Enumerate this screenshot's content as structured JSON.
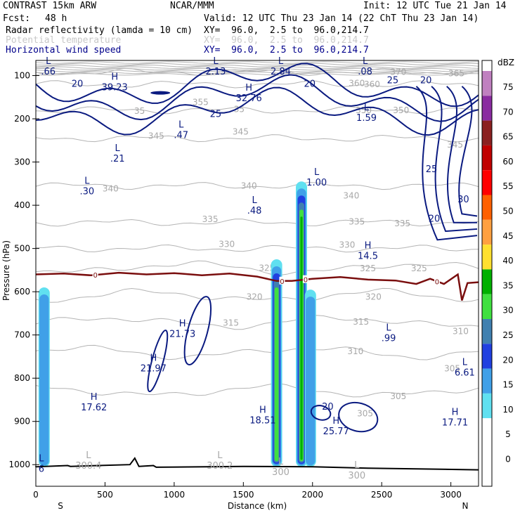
{
  "header": {
    "model": "CONTRAST 15km ARW",
    "org": "NCAR/MMM",
    "init": "Init: 12 UTC Tue 21 Jan 14",
    "fcst_label": "Fcst:",
    "fcst_value": "48 h",
    "valid": "Valid: 12 UTC Thu 23 Jan 14 (22 ChT Thu 23 Jan 14)",
    "fields": [
      {
        "name": "Radar reflectivity (lamda = 10 cm)",
        "xy": "XY=  96.0,  2.5 to  96.0,214.7",
        "color": "#000000"
      },
      {
        "name": "Potential temperature",
        "xy": "XY=  96.0,  2.5 to  96.0,214.7",
        "color": "#c8c8c8"
      },
      {
        "name": "Horizontal wind speed",
        "xy": "XY=  96.0,  2.5 to  96.0,214.7",
        "color": "#00008b"
      }
    ]
  },
  "chart_data": {
    "type": "cross-section contour",
    "xlabel": "Distance (km)",
    "ylabel": "Pressure (hPa)",
    "xlim": [
      0,
      3200
    ],
    "ylim": [
      1050,
      65
    ],
    "x_ticks": [
      0,
      500,
      1000,
      1500,
      2000,
      2500,
      3000
    ],
    "y_ticks": [
      100,
      200,
      300,
      400,
      500,
      600,
      700,
      800,
      900,
      1000
    ],
    "x_end_labels": {
      "left": "S",
      "right": "N"
    },
    "colorbar": {
      "title": "dBZ",
      "levels": [
        75,
        70,
        65,
        60,
        55,
        50,
        45,
        40,
        35,
        30,
        25,
        20,
        15,
        10,
        5,
        0
      ],
      "colors": [
        "#ffffff",
        "#c080c0",
        "#8a2ba0",
        "#8b2020",
        "#c00000",
        "#ff0000",
        "#ff6000",
        "#ffa040",
        "#ffe030",
        "#00b000",
        "#40e040",
        "#4080b0",
        "#2040e0",
        "#40a0e8",
        "#60e0f0",
        "#ffffff"
      ]
    },
    "radar_columns": [
      {
        "x_km": 60,
        "top_hpa": 590,
        "bottom_hpa": 1005,
        "max_dbz": 10
      },
      {
        "x_km": 1740,
        "top_hpa": 525,
        "bottom_hpa": 1005,
        "max_dbz": 25
      },
      {
        "x_km": 1920,
        "top_hpa": 345,
        "bottom_hpa": 1005,
        "max_dbz": 30
      },
      {
        "x_km": 1985,
        "top_hpa": 595,
        "bottom_hpa": 1005,
        "max_dbz": 10
      }
    ],
    "theta_contours": [
      {
        "level": 370,
        "pressure_hpa": 92
      },
      {
        "level": 360,
        "pressure_hpa": 120
      },
      {
        "level": 350,
        "pressure_hpa": 180
      },
      {
        "level": 345,
        "pressure_hpa": 245
      },
      {
        "level": 340,
        "pressure_hpa": 355
      },
      {
        "level": 335,
        "pressure_hpa": 440
      },
      {
        "level": 330,
        "pressure_hpa": 500
      },
      {
        "level": 325,
        "pressure_hpa": 545
      },
      {
        "level": 320,
        "pressure_hpa": 610
      },
      {
        "level": 315,
        "pressure_hpa": 670
      },
      {
        "level": 310,
        "pressure_hpa": 740
      },
      {
        "level": 305,
        "pressure_hpa": 830
      }
    ],
    "theta_labels": [
      {
        "text": "370",
        "x_km": 2620,
        "p": 92
      },
      {
        "text": "365",
        "x_km": 3040,
        "p": 95
      },
      {
        "text": "360",
        "x_km": 2320,
        "p": 118
      },
      {
        "text": "360",
        "x_km": 2430,
        "p": 120
      },
      {
        "text": "355",
        "x_km": 1190,
        "p": 162
      },
      {
        "text": "350",
        "x_km": 2370,
        "p": 180
      },
      {
        "text": "350",
        "x_km": 2640,
        "p": 180
      },
      {
        "text": "35",
        "x_km": 1470,
        "p": 178
      },
      {
        "text": "35",
        "x_km": 750,
        "p": 182
      },
      {
        "text": "345",
        "x_km": 870,
        "p": 240
      },
      {
        "text": "345",
        "x_km": 1480,
        "p": 230
      },
      {
        "text": "345",
        "x_km": 3030,
        "p": 260
      },
      {
        "text": "340",
        "x_km": 540,
        "p": 362
      },
      {
        "text": "340",
        "x_km": 1540,
        "p": 355
      },
      {
        "text": "340",
        "x_km": 2280,
        "p": 378
      },
      {
        "text": "335",
        "x_km": 1260,
        "p": 432
      },
      {
        "text": "335",
        "x_km": 2320,
        "p": 438
      },
      {
        "text": "335",
        "x_km": 2650,
        "p": 442
      },
      {
        "text": "330",
        "x_km": 1380,
        "p": 490
      },
      {
        "text": "330",
        "x_km": 2250,
        "p": 492
      },
      {
        "text": "325",
        "x_km": 1670,
        "p": 545
      },
      {
        "text": "325",
        "x_km": 2400,
        "p": 546
      },
      {
        "text": "325",
        "x_km": 2770,
        "p": 546
      },
      {
        "text": "320",
        "x_km": 1580,
        "p": 612
      },
      {
        "text": "320",
        "x_km": 2440,
        "p": 612
      },
      {
        "text": "315",
        "x_km": 1410,
        "p": 672
      },
      {
        "text": "315",
        "x_km": 2350,
        "p": 670
      },
      {
        "text": "310",
        "x_km": 2310,
        "p": 738
      },
      {
        "text": "310",
        "x_km": 3070,
        "p": 692
      },
      {
        "text": "305",
        "x_km": 3010,
        "p": 778
      },
      {
        "text": "305",
        "x_km": 2620,
        "p": 842
      },
      {
        "text": "305",
        "x_km": 2380,
        "p": 882
      }
    ],
    "wind_labels": [
      {
        "text": "20",
        "x_km": 300,
        "p": 118
      },
      {
        "text": "20",
        "x_km": 1980,
        "p": 118
      },
      {
        "text": "25",
        "x_km": 2580,
        "p": 110
      },
      {
        "text": "20",
        "x_km": 2820,
        "p": 110
      },
      {
        "text": "25",
        "x_km": 1300,
        "p": 188
      },
      {
        "text": "25",
        "x_km": 2860,
        "p": 315
      },
      {
        "text": "30",
        "x_km": 3090,
        "p": 385
      },
      {
        "text": "20",
        "x_km": 2880,
        "p": 430
      },
      {
        "text": "20",
        "x_km": 2110,
        "p": 865
      }
    ],
    "extrema": [
      {
        "kind": "L",
        "value": ".66",
        "x_km": 90,
        "p": 73
      },
      {
        "kind": "L",
        "value": "2.13",
        "x_km": 1300,
        "p": 73
      },
      {
        "kind": "L",
        "value": "2.84",
        "x_km": 1770,
        "p": 73
      },
      {
        "kind": "L",
        "value": ".08",
        "x_km": 2380,
        "p": 73
      },
      {
        "kind": "H",
        "value": "39.23",
        "x_km": 570,
        "p": 110
      },
      {
        "kind": "H",
        "value": "32.76",
        "x_km": 1540,
        "p": 135
      },
      {
        "kind": "L",
        "value": "1.59",
        "x_km": 2390,
        "p": 180
      },
      {
        "kind": "L",
        "value": ".47",
        "x_km": 1050,
        "p": 220
      },
      {
        "kind": "L",
        "value": ".21",
        "x_km": 590,
        "p": 275
      },
      {
        "kind": "L",
        "value": ".30",
        "x_km": 370,
        "p": 350
      },
      {
        "kind": "L",
        "value": "1.00",
        "x_km": 2030,
        "p": 330
      },
      {
        "kind": "L",
        "value": ".48",
        "x_km": 1580,
        "p": 395
      },
      {
        "kind": "H",
        "value": "14.5",
        "x_km": 2400,
        "p": 500
      },
      {
        "kind": "H",
        "value": "21.73",
        "x_km": 1060,
        "p": 680
      },
      {
        "kind": "H",
        "value": "21.97",
        "x_km": 850,
        "p": 760
      },
      {
        "kind": "L",
        "value": ".99",
        "x_km": 2550,
        "p": 690
      },
      {
        "kind": "L",
        "value": "6.61",
        "x_km": 3100,
        "p": 770
      },
      {
        "kind": "H",
        "value": "17.62",
        "x_km": 420,
        "p": 850
      },
      {
        "kind": "H",
        "value": "18.51",
        "x_km": 1640,
        "p": 880
      },
      {
        "kind": "H",
        "value": "25.77",
        "x_km": 2170,
        "p": 905
      },
      {
        "kind": "H",
        "value": "17.71",
        "x_km": 3030,
        "p": 885
      },
      {
        "kind": "L",
        "value": "300.4",
        "x_km": 380,
        "p": 985
      },
      {
        "kind": "L",
        "value": "300.2",
        "x_km": 1330,
        "p": 985
      },
      {
        "kind": "L",
        "value": "300",
        "x_km": 1770,
        "p": 1000
      },
      {
        "kind": "L",
        "value": "300",
        "x_km": 2320,
        "p": 1008
      },
      {
        "kind": "L",
        "value": "6",
        "x_km": 40,
        "p": 992
      }
    ],
    "freezing_level": {
      "label": "0",
      "points": [
        [
          0,
          560
        ],
        [
          200,
          558
        ],
        [
          400,
          562
        ],
        [
          600,
          556
        ],
        [
          800,
          560
        ],
        [
          1000,
          557
        ],
        [
          1200,
          562
        ],
        [
          1400,
          558
        ],
        [
          1600,
          565
        ],
        [
          1740,
          575
        ],
        [
          1850,
          575
        ],
        [
          2000,
          570
        ],
        [
          2200,
          566
        ],
        [
          2400,
          572
        ],
        [
          2600,
          574
        ],
        [
          2750,
          582
        ],
        [
          2850,
          570
        ],
        [
          2950,
          582
        ],
        [
          3050,
          560
        ],
        [
          3080,
          620
        ],
        [
          3120,
          580
        ],
        [
          3200,
          578
        ]
      ],
      "label_positions_km": [
        430,
        1780,
        1950,
        2900
      ]
    }
  }
}
